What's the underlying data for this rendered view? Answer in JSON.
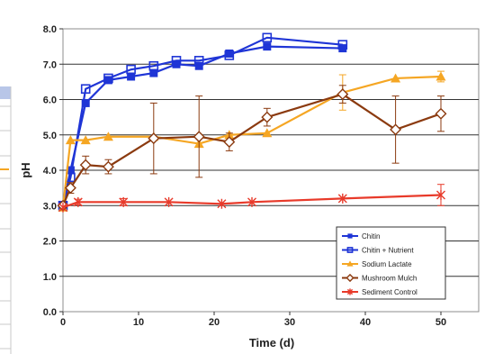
{
  "chart_data": {
    "type": "line",
    "xlabel": "Time (d)",
    "ylabel": "pH",
    "xlim": [
      0,
      55
    ],
    "ylim": [
      0.0,
      8.0
    ],
    "x_ticks": [
      0,
      10,
      20,
      30,
      40,
      50
    ],
    "y_ticks": [
      "0.0",
      "1.0",
      "2.0",
      "3.0",
      "4.0",
      "5.0",
      "6.0",
      "7.0",
      "8.0"
    ],
    "grid": "horizontal",
    "legend_position": "bottom-right",
    "series": [
      {
        "name": "Chitin",
        "color": "#1f35d6",
        "marker": "filled-square",
        "points": [
          [
            0,
            3.0
          ],
          [
            1,
            4.0
          ],
          [
            3,
            5.9
          ],
          [
            6,
            6.55
          ],
          [
            9,
            6.65
          ],
          [
            12,
            6.75
          ],
          [
            15,
            7.0
          ],
          [
            18,
            6.95
          ],
          [
            22,
            7.3
          ],
          [
            27,
            7.5
          ],
          [
            37,
            7.45
          ]
        ]
      },
      {
        "name": "Chitin + Nutrient",
        "color": "#1f35d6",
        "marker": "open-square",
        "points": [
          [
            0,
            3.0
          ],
          [
            1,
            3.8
          ],
          [
            3,
            6.3
          ],
          [
            6,
            6.6
          ],
          [
            9,
            6.85
          ],
          [
            12,
            6.95
          ],
          [
            15,
            7.1
          ],
          [
            18,
            7.1
          ],
          [
            22,
            7.25
          ],
          [
            27,
            7.75
          ],
          [
            37,
            7.55
          ]
        ]
      },
      {
        "name": "Sodium Lactate",
        "color": "#f5a623",
        "marker": "triangle",
        "points": [
          [
            0,
            2.95
          ],
          [
            1,
            4.85
          ],
          [
            3,
            4.85
          ],
          [
            6,
            4.95
          ],
          [
            12,
            4.95
          ],
          [
            18,
            4.75
          ],
          [
            22,
            5.0
          ],
          [
            27,
            5.05
          ],
          [
            37,
            6.2
          ],
          [
            44,
            6.6
          ],
          [
            50,
            6.65
          ]
        ],
        "errors": [
          0,
          0,
          0,
          0,
          0,
          0,
          0,
          0,
          0.5,
          0,
          0.15
        ]
      },
      {
        "name": "Mushroom Mulch",
        "color": "#8b3a0f",
        "marker": "open-diamond",
        "points": [
          [
            0,
            3.0
          ],
          [
            1,
            3.5
          ],
          [
            3,
            4.15
          ],
          [
            6,
            4.1
          ],
          [
            12,
            4.9
          ],
          [
            18,
            4.95
          ],
          [
            22,
            4.8
          ],
          [
            27,
            5.5
          ],
          [
            37,
            6.15
          ],
          [
            44,
            5.15
          ],
          [
            50,
            5.6
          ]
        ],
        "errors": [
          0,
          0.15,
          0.25,
          0.2,
          1.0,
          1.15,
          0.25,
          0.25,
          0.25,
          0.95,
          0.5
        ]
      },
      {
        "name": "Sediment Control",
        "color": "#e83a2a",
        "marker": "star",
        "points": [
          [
            0,
            2.95
          ],
          [
            2,
            3.1
          ],
          [
            8,
            3.1
          ],
          [
            14,
            3.1
          ],
          [
            21,
            3.05
          ],
          [
            25,
            3.1
          ],
          [
            37,
            3.2
          ],
          [
            50,
            3.3
          ]
        ],
        "errors": [
          0,
          0.08,
          0.1,
          0,
          0,
          0,
          0,
          0.3
        ]
      }
    ]
  }
}
